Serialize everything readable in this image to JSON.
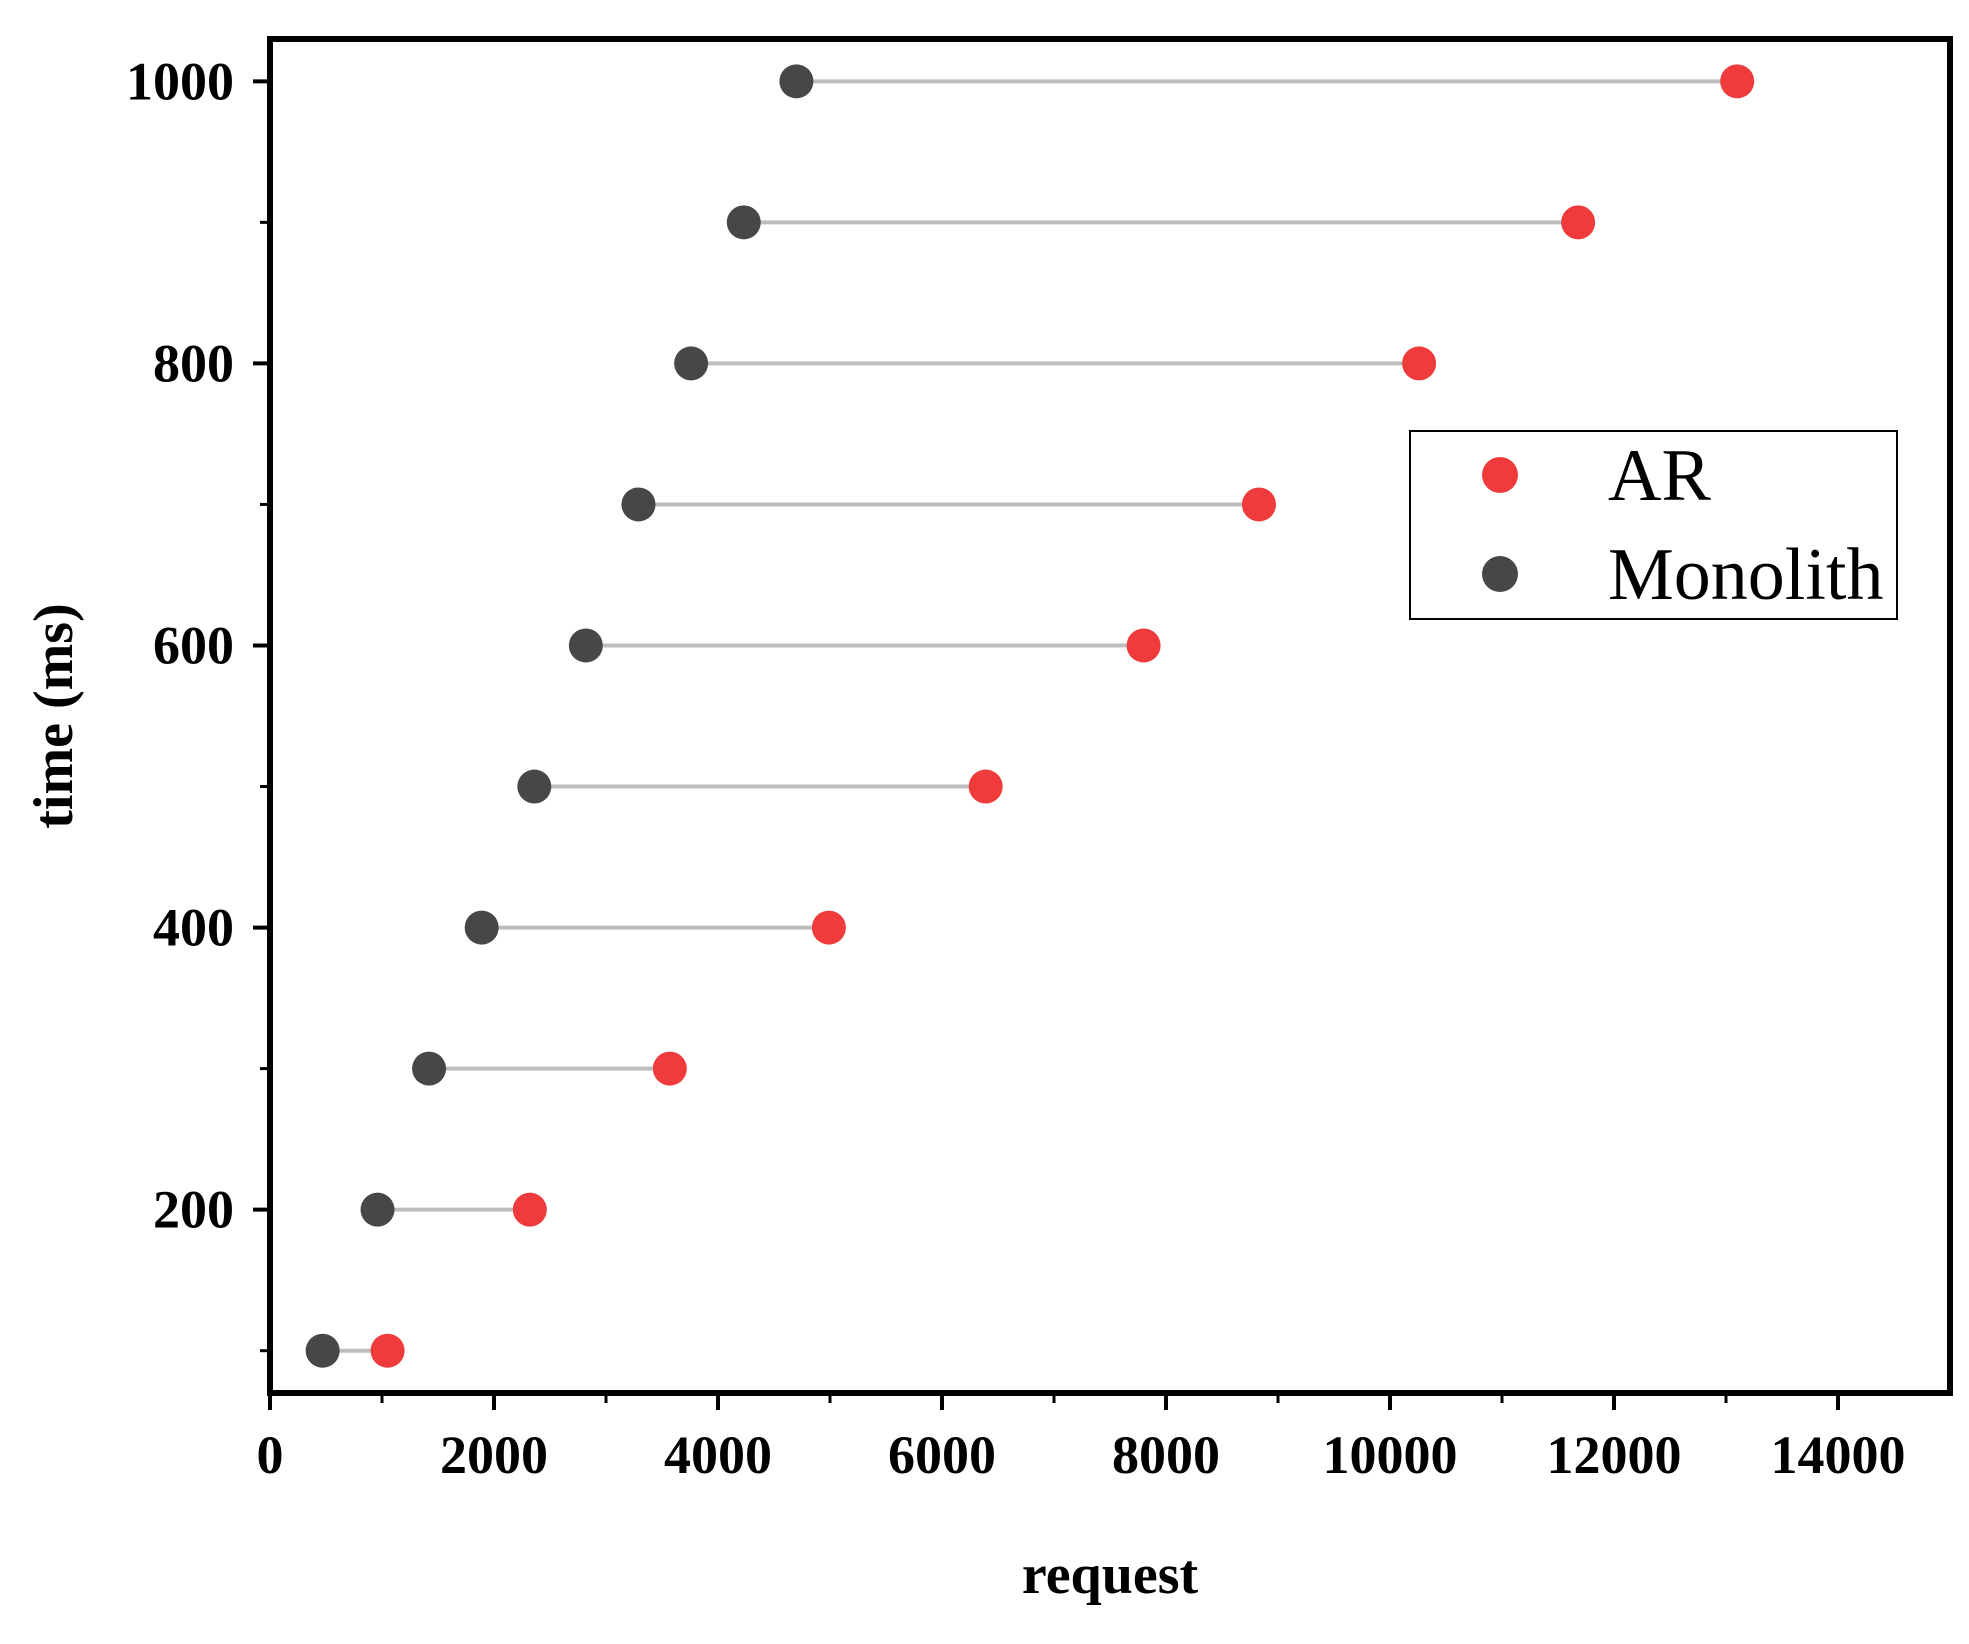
{
  "chart_data": {
    "type": "scatter",
    "title": "",
    "xlabel": "request",
    "ylabel": "time (ms)",
    "xlim": [
      0,
      15000
    ],
    "ylim": [
      70,
      1030
    ],
    "x_ticks": [
      0,
      2000,
      4000,
      6000,
      8000,
      10000,
      12000,
      14000
    ],
    "x_tick_labels": [
      "0",
      "2000",
      "4000",
      "6000",
      "8000",
      "10000",
      "12000",
      "14000"
    ],
    "y_ticks": [
      200,
      400,
      600,
      800,
      1000
    ],
    "y_tick_labels": [
      "200",
      "400",
      "600",
      "800",
      "1000"
    ],
    "y": [
      100,
      200,
      300,
      400,
      500,
      600,
      700,
      800,
      900,
      1000
    ],
    "series": [
      {
        "name": "AR",
        "color": "#ef3b3b",
        "x": [
          1050,
          2320,
          3570,
          4990,
          6390,
          7800,
          8830,
          10260,
          11680,
          13100
        ]
      },
      {
        "name": "Monolith",
        "color": "#474747",
        "x": [
          470,
          960,
          1420,
          1890,
          2360,
          2820,
          3290,
          3760,
          4230,
          4700
        ]
      }
    ],
    "connector_color": "#bdbdbd",
    "legend_position": "upper-right",
    "grid": false
  }
}
